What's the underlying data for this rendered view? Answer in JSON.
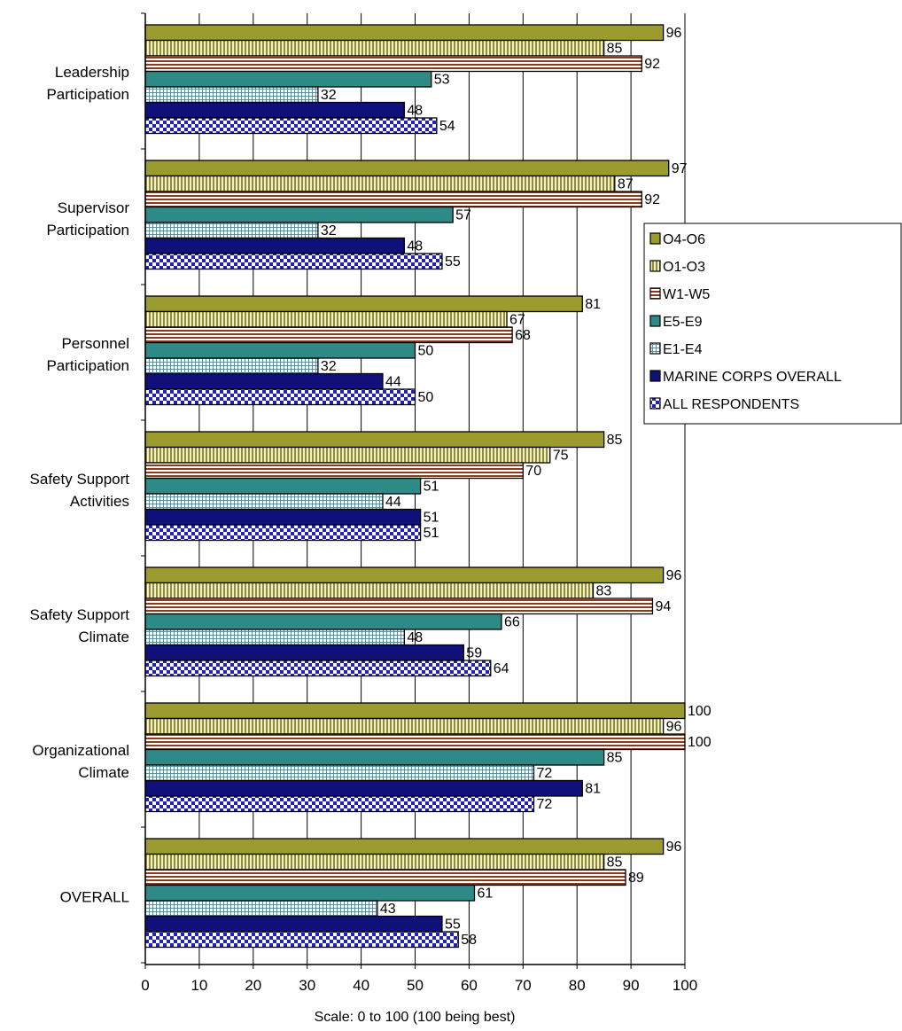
{
  "chart_data": {
    "type": "bar",
    "orientation": "horizontal",
    "categories": [
      [
        "Leadership",
        "Participation"
      ],
      [
        "Supervisor",
        "Participation"
      ],
      [
        "Personnel",
        "Participation"
      ],
      [
        "Safety Support",
        "Activities"
      ],
      [
        "Safety Support",
        "Climate"
      ],
      [
        "Organizational",
        "Climate"
      ],
      [
        "OVERALL"
      ]
    ],
    "series": [
      {
        "name": "O4-O6",
        "color": "#9b9b2f",
        "pattern": "solid",
        "values": [
          96,
          97,
          81,
          85,
          96,
          100,
          96
        ]
      },
      {
        "name": "O1-O3",
        "color": "#e8e6a0",
        "pattern": "vertical-stripes",
        "values": [
          85,
          87,
          67,
          75,
          83,
          96,
          85
        ]
      },
      {
        "name": "W1-W5",
        "color": "#8b3a1e",
        "pattern": "horizontal-stripes",
        "values": [
          92,
          92,
          68,
          70,
          94,
          100,
          89
        ]
      },
      {
        "name": "E5-E9",
        "color": "#2e8a86",
        "pattern": "solid",
        "values": [
          53,
          57,
          50,
          51,
          66,
          85,
          61
        ]
      },
      {
        "name": "E1-E4",
        "color": "#9fb6bf",
        "pattern": "grid",
        "values": [
          32,
          32,
          32,
          44,
          48,
          72,
          43
        ]
      },
      {
        "name": "MARINE CORPS OVERALL",
        "color": "#10107a",
        "pattern": "solid",
        "values": [
          48,
          48,
          44,
          51,
          59,
          81,
          55
        ]
      },
      {
        "name": "ALL RESPONDENTS",
        "color": "#2121b8",
        "pattern": "checker",
        "values": [
          54,
          55,
          50,
          51,
          64,
          72,
          58
        ]
      }
    ],
    "xlim": [
      0,
      100
    ],
    "xticks": [
      0,
      10,
      20,
      30,
      40,
      50,
      60,
      70,
      80,
      90,
      100
    ],
    "xlabel": "Scale: 0 to 100 (100 being best)",
    "grid": "vertical",
    "legend": "right"
  }
}
